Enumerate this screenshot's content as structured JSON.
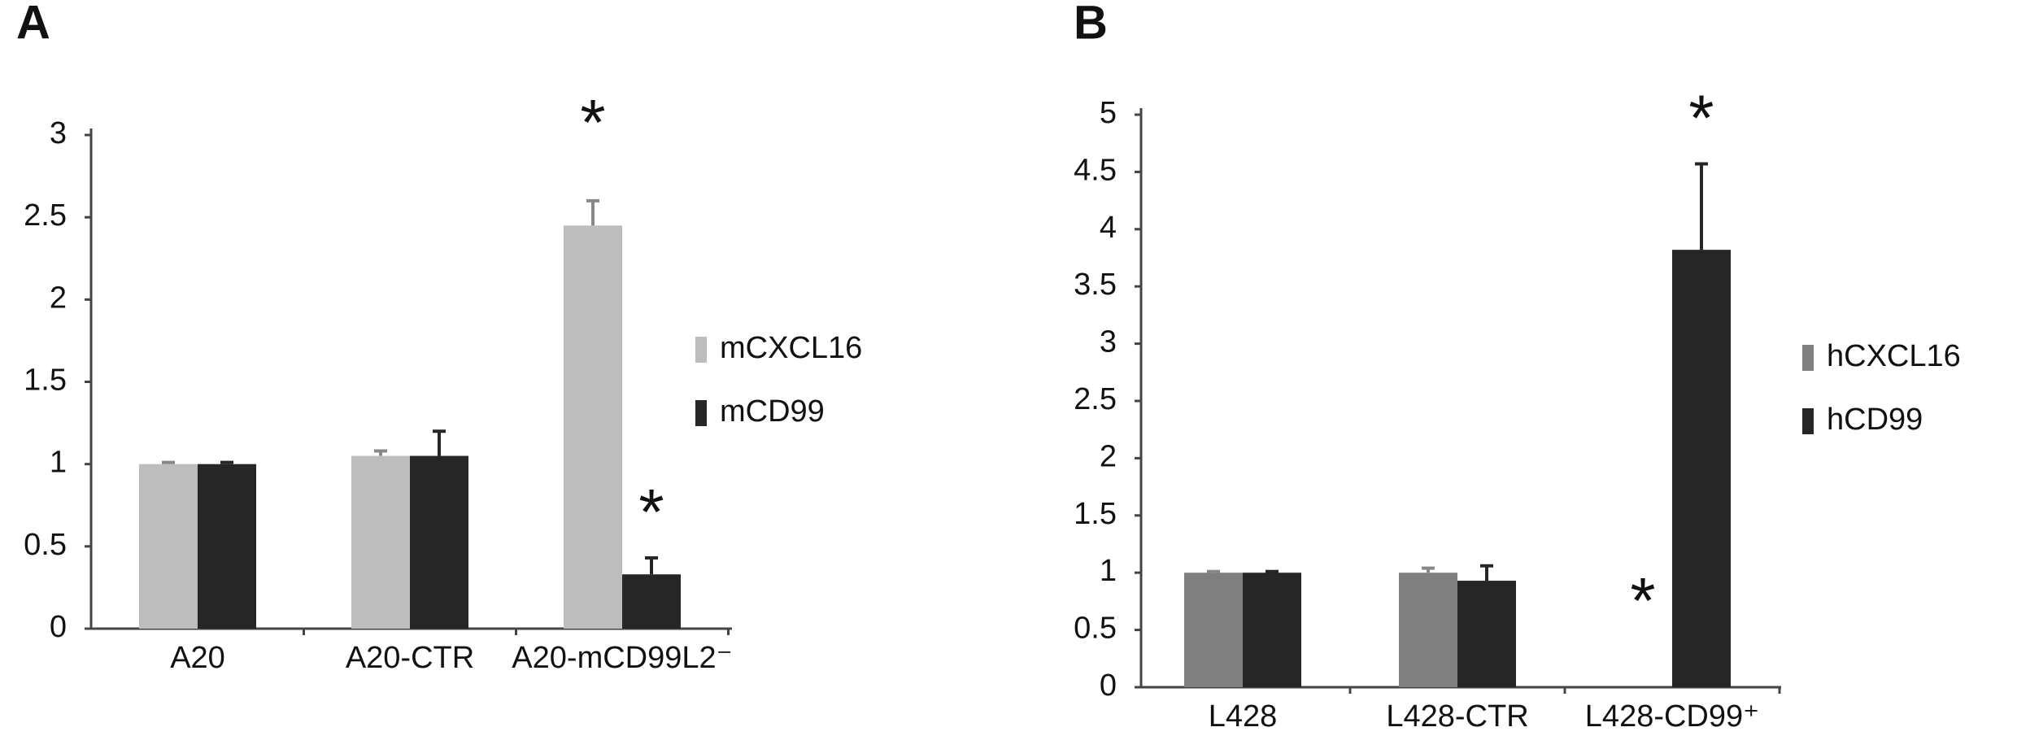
{
  "chart_data": [
    {
      "type": "bar",
      "panel_label": "A",
      "categories": [
        "A20",
        "A20-CTR",
        "A20-mCD99L2⁻"
      ],
      "series": [
        {
          "name": "mCXCL16",
          "color": "#bdbdbd",
          "values": [
            1,
            1.05,
            2.45
          ],
          "errors": [
            0.01,
            0.03,
            0.15
          ]
        },
        {
          "name": "mCD99",
          "color": "#262626",
          "values": [
            1,
            1.05,
            0.33
          ],
          "errors": [
            0.01,
            0.15,
            0.1
          ]
        }
      ],
      "annotations": [
        "*",
        "*"
      ],
      "ylim": [
        0,
        3
      ],
      "yticks": [
        0,
        0.5,
        1,
        1.5,
        2,
        2.5,
        3
      ]
    },
    {
      "type": "bar",
      "panel_label": "B",
      "categories": [
        "L428",
        "L428-CTR",
        "L428-CD99⁺"
      ],
      "series": [
        {
          "name": "hCXCL16",
          "color": "#7f7f7f",
          "values": [
            1,
            1,
            0
          ],
          "errors": [
            0.01,
            0.04,
            0
          ]
        },
        {
          "name": "hCD99",
          "color": "#262626",
          "values": [
            1,
            0.93,
            3.82
          ],
          "errors": [
            0.01,
            0.13,
            0.75
          ]
        }
      ],
      "annotations": [
        "*",
        "*"
      ],
      "ylim": [
        0,
        5
      ],
      "yticks": [
        0,
        0.5,
        1,
        1.5,
        2,
        2.5,
        3,
        3.5,
        4,
        4.5,
        5
      ]
    }
  ]
}
